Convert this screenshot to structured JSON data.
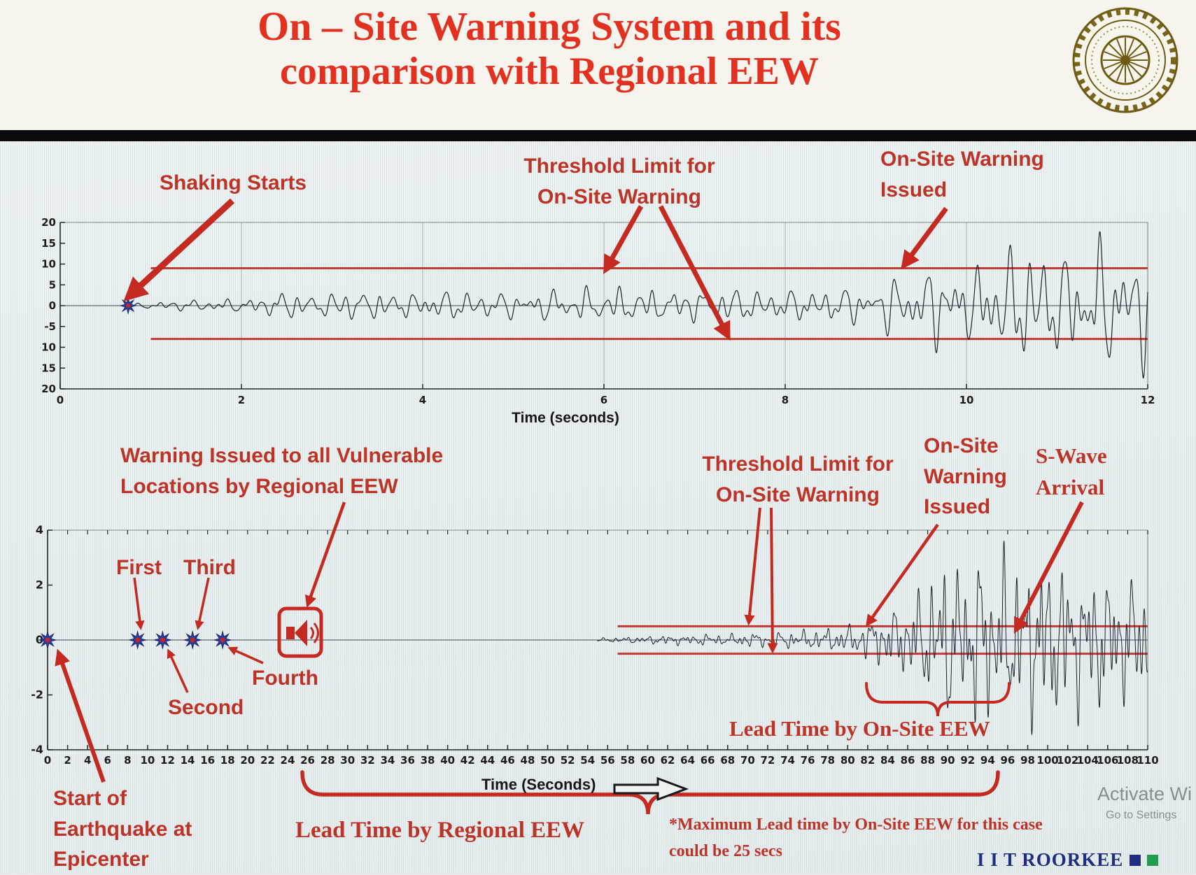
{
  "header": {
    "title_line1": "On – Site Warning System and its",
    "title_line2": "comparison with Regional EEW",
    "logo": "iit-roorkee-emblem"
  },
  "annotations": {
    "shaking_starts": "Shaking Starts",
    "threshold_top_l1": "Threshold Limit for",
    "threshold_top_l2": "On-Site Warning",
    "onsite_top_l1": "On-Site Warning",
    "onsite_top_l2": "Issued",
    "warning_regional_l1": "Warning Issued to all Vulnerable",
    "warning_regional_l2": "Locations by Regional EEW",
    "threshold_bottom_l1": "Threshold Limit for",
    "threshold_bottom_l2": "On-Site Warning",
    "onsite_bottom_l1": "On-Site",
    "onsite_bottom_l2": "Warning",
    "onsite_bottom_l3": "Issued",
    "swave_l1": "S-Wave",
    "swave_l2": "Arrival",
    "lead_onsite": "Lead Time by On-Site EEW",
    "lead_regional": "Lead Time by Regional EEW",
    "start_epicenter_l1": "Start of",
    "start_epicenter_l2": "Earthquake at",
    "start_epicenter_l3": "Epicenter",
    "max_note_l1": "*Maximum Lead time by On-Site EEW for this case",
    "max_note_l2": "could be 25 secs"
  },
  "footer": {
    "brand": "I I T ROORKEE",
    "activate_l1": "Activate Wi",
    "activate_l2": "Go to Settings"
  },
  "chart_data": [
    {
      "type": "line",
      "xlabel": "Time (seconds)",
      "ylabel": "",
      "xlim": [
        0,
        12
      ],
      "ylim": [
        -20,
        20
      ],
      "xticks": [
        0,
        2,
        4,
        6,
        8,
        10,
        12
      ],
      "yticks": [
        20,
        15,
        10,
        5,
        0,
        -5,
        -10,
        -15,
        -20
      ],
      "grid_x": true,
      "threshold_upper": 9,
      "threshold_lower": -8,
      "threshold_start_t": 1,
      "threshold_color": "#c23a32",
      "waveform_color": "#19222e",
      "shaking_start_t": 0.75,
      "onsite_warning_t": 9.3,
      "event_marker": {
        "t": 0.75
      },
      "waveform_envelope": [
        [
          0.75,
          0.3
        ],
        [
          1.1,
          1.2
        ],
        [
          1.6,
          1.6
        ],
        [
          2.1,
          1.8
        ],
        [
          2.45,
          3.8
        ],
        [
          2.8,
          3.0
        ],
        [
          3.3,
          4.2
        ],
        [
          3.8,
          3.2
        ],
        [
          4.3,
          4.0
        ],
        [
          5.0,
          3.4
        ],
        [
          5.6,
          4.4
        ],
        [
          6.2,
          4.8
        ],
        [
          6.8,
          4.0
        ],
        [
          7.4,
          4.6
        ],
        [
          8.0,
          4.0
        ],
        [
          8.6,
          4.6
        ],
        [
          9.0,
          5.5
        ],
        [
          9.3,
          8.5
        ],
        [
          9.7,
          10.5
        ],
        [
          10.0,
          9.0
        ],
        [
          10.35,
          13.5
        ],
        [
          10.7,
          17.0
        ],
        [
          11.05,
          13.0
        ],
        [
          11.4,
          17.5
        ],
        [
          11.75,
          14.0
        ],
        [
          12.0,
          16.0
        ]
      ],
      "dominant_freqs": [
        5.3,
        7.9,
        3.2,
        11.3
      ],
      "seed": 11
    },
    {
      "type": "line",
      "xlabel": "Time (Seconds)",
      "ylabel": "",
      "xlim": [
        0,
        110
      ],
      "ylim": [
        -4,
        4
      ],
      "xtick_step": 2,
      "yticks": [
        4,
        2,
        0,
        -2,
        -4
      ],
      "top_ticks": true,
      "threshold_upper": 0.5,
      "threshold_lower": -0.5,
      "threshold_start_t": 57,
      "threshold_color": "#c23a32",
      "waveform_color": "#19222e",
      "epicenter_t": 0,
      "sensor_triggers": [
        {
          "label": "First",
          "t": 9
        },
        {
          "label": "Second",
          "t": 11.5
        },
        {
          "label": "Third",
          "t": 14.5
        },
        {
          "label": "Fourth",
          "t": 17.5
        }
      ],
      "regional_warning_t": 25,
      "onsite_warning_t": 82,
      "s_wave_arrival_t": 96,
      "max_onsite_lead_time_secs": 25,
      "waveform_envelope": [
        [
          55,
          0.07
        ],
        [
          58,
          0.12
        ],
        [
          60,
          0.15
        ],
        [
          62,
          0.2
        ],
        [
          64,
          0.17
        ],
        [
          66,
          0.24
        ],
        [
          68,
          0.2
        ],
        [
          70,
          0.3
        ],
        [
          72,
          0.26
        ],
        [
          74,
          0.34
        ],
        [
          76,
          0.38
        ],
        [
          78,
          0.44
        ],
        [
          80,
          0.55
        ],
        [
          82,
          0.8
        ],
        [
          84,
          1.1
        ],
        [
          86,
          1.5
        ],
        [
          88,
          2.3
        ],
        [
          90,
          3.3
        ],
        [
          91.5,
          2.7
        ],
        [
          93,
          3.5
        ],
        [
          94.5,
          2.9
        ],
        [
          96,
          3.4
        ],
        [
          97.5,
          2.8
        ],
        [
          99,
          3.5
        ],
        [
          100.5,
          3.0
        ],
        [
          102,
          3.3
        ],
        [
          103.5,
          2.5
        ],
        [
          105,
          2.9
        ],
        [
          106.5,
          2.2
        ],
        [
          108,
          2.6
        ],
        [
          110,
          2.1
        ]
      ],
      "dominant_freqs": [
        0.85,
        1.55,
        2.35,
        0.45
      ],
      "seed": 23
    }
  ]
}
